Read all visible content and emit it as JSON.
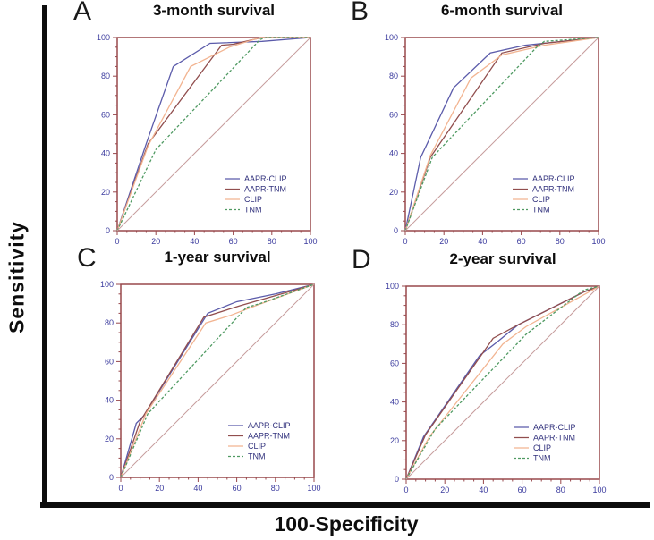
{
  "figure": {
    "y_axis_label": "Sensitivity",
    "x_axis_label": "100-Specificity",
    "colors": {
      "frame": "#98484c",
      "tick_label": "#3b3b9e",
      "legend_text": "#32327d",
      "reference_line": "#c79c9c",
      "aapr_clip": "#5b5baa",
      "aapr_tnm": "#914e4e",
      "clip": "#f2b491",
      "tnm": "#4f9a62"
    },
    "legend_labels": [
      "AAPR-CLIP",
      "AAPR-TNM",
      "CLIP",
      "TNM"
    ]
  },
  "chart_data": [
    {
      "type": "line",
      "panel": "A",
      "title": "3-month survival",
      "xlabel": "100-Specificity",
      "ylabel": "Sensitivity",
      "xlim": [
        0,
        100
      ],
      "ylim": [
        0,
        100
      ],
      "xticks": [
        0,
        20,
        40,
        60,
        80,
        100
      ],
      "yticks": [
        0,
        20,
        40,
        60,
        80,
        100
      ],
      "minor_tick_step": 5,
      "grid": false,
      "legend_position": "bottom-right",
      "series": [
        {
          "name": "AAPR-CLIP",
          "color": "#5b5baa",
          "dash": null,
          "points": [
            [
              0,
              0
            ],
            [
              15,
              45
            ],
            [
              29,
              85
            ],
            [
              48,
              97
            ],
            [
              75,
              98
            ],
            [
              100,
              100
            ]
          ]
        },
        {
          "name": "AAPR-TNM",
          "color": "#914e4e",
          "dash": null,
          "points": [
            [
              0,
              0
            ],
            [
              16,
              45
            ],
            [
              54,
              96
            ],
            [
              60,
              96.5
            ],
            [
              75,
              100
            ],
            [
              100,
              100
            ]
          ]
        },
        {
          "name": "CLIP",
          "color": "#f2b491",
          "dash": null,
          "points": [
            [
              0,
              0
            ],
            [
              16,
              44
            ],
            [
              38,
              85
            ],
            [
              58,
              95
            ],
            [
              74,
              100
            ],
            [
              100,
              100
            ]
          ]
        },
        {
          "name": "TNM",
          "color": "#4f9a62",
          "dash": "3,2",
          "points": [
            [
              0,
              0
            ],
            [
              20,
              42
            ],
            [
              74,
              99
            ],
            [
              77,
              100
            ],
            [
              100,
              100
            ]
          ]
        },
        {
          "name": "reference",
          "reference": true,
          "color": "#c79c9c",
          "dash": null,
          "points": [
            [
              0,
              0
            ],
            [
              100,
              100
            ]
          ]
        }
      ]
    },
    {
      "type": "line",
      "panel": "B",
      "title": "6-month survival",
      "xlabel": "100-Specificity",
      "ylabel": "Sensitivity",
      "xlim": [
        0,
        100
      ],
      "ylim": [
        0,
        100
      ],
      "xticks": [
        0,
        20,
        40,
        60,
        80,
        100
      ],
      "yticks": [
        0,
        20,
        40,
        60,
        80,
        100
      ],
      "minor_tick_step": 5,
      "grid": false,
      "legend_position": "bottom-right",
      "series": [
        {
          "name": "AAPR-CLIP",
          "color": "#5b5baa",
          "dash": null,
          "points": [
            [
              0,
              0
            ],
            [
              8,
              38
            ],
            [
              25,
              74
            ],
            [
              44,
              92
            ],
            [
              62,
              96
            ],
            [
              100,
              100
            ]
          ]
        },
        {
          "name": "AAPR-TNM",
          "color": "#914e4e",
          "dash": null,
          "points": [
            [
              0,
              0
            ],
            [
              13,
              38
            ],
            [
              50,
              92
            ],
            [
              72,
              97
            ],
            [
              100,
              100
            ]
          ]
        },
        {
          "name": "CLIP",
          "color": "#f2b491",
          "dash": null,
          "points": [
            [
              0,
              0
            ],
            [
              13,
              39
            ],
            [
              34,
              79
            ],
            [
              50,
              91
            ],
            [
              72,
              96
            ],
            [
              100,
              100
            ]
          ]
        },
        {
          "name": "TNM",
          "color": "#4f9a62",
          "dash": "3,2",
          "points": [
            [
              0,
              0
            ],
            [
              14,
              38
            ],
            [
              68,
              95
            ],
            [
              72,
              98
            ],
            [
              100,
              100
            ]
          ]
        },
        {
          "name": "reference",
          "reference": true,
          "color": "#c79c9c",
          "dash": null,
          "points": [
            [
              0,
              0
            ],
            [
              100,
              100
            ]
          ]
        }
      ]
    },
    {
      "type": "line",
      "panel": "C",
      "title": "1-year survival",
      "xlabel": "100-Specificity",
      "ylabel": "Sensitivity",
      "xlim": [
        0,
        100
      ],
      "ylim": [
        0,
        100
      ],
      "xticks": [
        0,
        20,
        40,
        60,
        80,
        100
      ],
      "yticks": [
        0,
        20,
        40,
        60,
        80,
        100
      ],
      "minor_tick_step": 5,
      "grid": false,
      "legend_position": "bottom-right",
      "series": [
        {
          "name": "AAPR-CLIP",
          "color": "#5b5baa",
          "dash": null,
          "points": [
            [
              0,
              0
            ],
            [
              8,
              28
            ],
            [
              12,
              32
            ],
            [
              45,
              85
            ],
            [
              60,
              91
            ],
            [
              80,
              95
            ],
            [
              100,
              100
            ]
          ]
        },
        {
          "name": "AAPR-TNM",
          "color": "#914e4e",
          "dash": null,
          "points": [
            [
              0,
              0
            ],
            [
              10,
              29
            ],
            [
              43,
              83
            ],
            [
              62,
              89
            ],
            [
              90,
              97
            ],
            [
              100,
              100
            ]
          ]
        },
        {
          "name": "CLIP",
          "color": "#f2b491",
          "dash": null,
          "points": [
            [
              0,
              0
            ],
            [
              13,
              33
            ],
            [
              44,
              80
            ],
            [
              57,
              84
            ],
            [
              70,
              89
            ],
            [
              100,
              100
            ]
          ]
        },
        {
          "name": "TNM",
          "color": "#4f9a62",
          "dash": "3,2",
          "points": [
            [
              0,
              0
            ],
            [
              14,
              33
            ],
            [
              65,
              88
            ],
            [
              72,
              90
            ],
            [
              100,
              100
            ]
          ]
        },
        {
          "name": "reference",
          "reference": true,
          "color": "#c79c9c",
          "dash": null,
          "points": [
            [
              0,
              0
            ],
            [
              100,
              100
            ]
          ]
        }
      ]
    },
    {
      "type": "line",
      "panel": "D",
      "title": "2-year survival",
      "xlabel": "100-Specificity",
      "ylabel": "Sensitivity",
      "xlim": [
        0,
        100
      ],
      "ylim": [
        0,
        100
      ],
      "xticks": [
        0,
        20,
        40,
        60,
        80,
        100
      ],
      "yticks": [
        0,
        20,
        40,
        60,
        80,
        100
      ],
      "minor_tick_step": 5,
      "grid": false,
      "legend_position": "bottom-right",
      "series": [
        {
          "name": "AAPR-CLIP",
          "color": "#5b5baa",
          "dash": null,
          "points": [
            [
              0,
              0
            ],
            [
              9,
              22
            ],
            [
              38,
              64
            ],
            [
              47,
              71
            ],
            [
              58,
              80
            ],
            [
              92,
              97
            ],
            [
              100,
              100
            ]
          ]
        },
        {
          "name": "AAPR-TNM",
          "color": "#914e4e",
          "dash": null,
          "points": [
            [
              0,
              0
            ],
            [
              10,
              23
            ],
            [
              45,
              73
            ],
            [
              58,
              80
            ],
            [
              92,
              97
            ],
            [
              100,
              100
            ]
          ]
        },
        {
          "name": "CLIP",
          "color": "#f2b491",
          "dash": null,
          "points": [
            [
              0,
              0
            ],
            [
              12,
              22
            ],
            [
              50,
              70
            ],
            [
              62,
              79
            ],
            [
              91,
              95
            ],
            [
              100,
              100
            ]
          ]
        },
        {
          "name": "TNM",
          "color": "#4f9a62",
          "dash": "3,2",
          "points": [
            [
              0,
              0
            ],
            [
              15,
              26
            ],
            [
              62,
              75
            ],
            [
              92,
              98
            ],
            [
              100,
              100
            ]
          ]
        },
        {
          "name": "reference",
          "reference": true,
          "color": "#c79c9c",
          "dash": null,
          "points": [
            [
              0,
              0
            ],
            [
              100,
              100
            ]
          ]
        }
      ]
    }
  ]
}
